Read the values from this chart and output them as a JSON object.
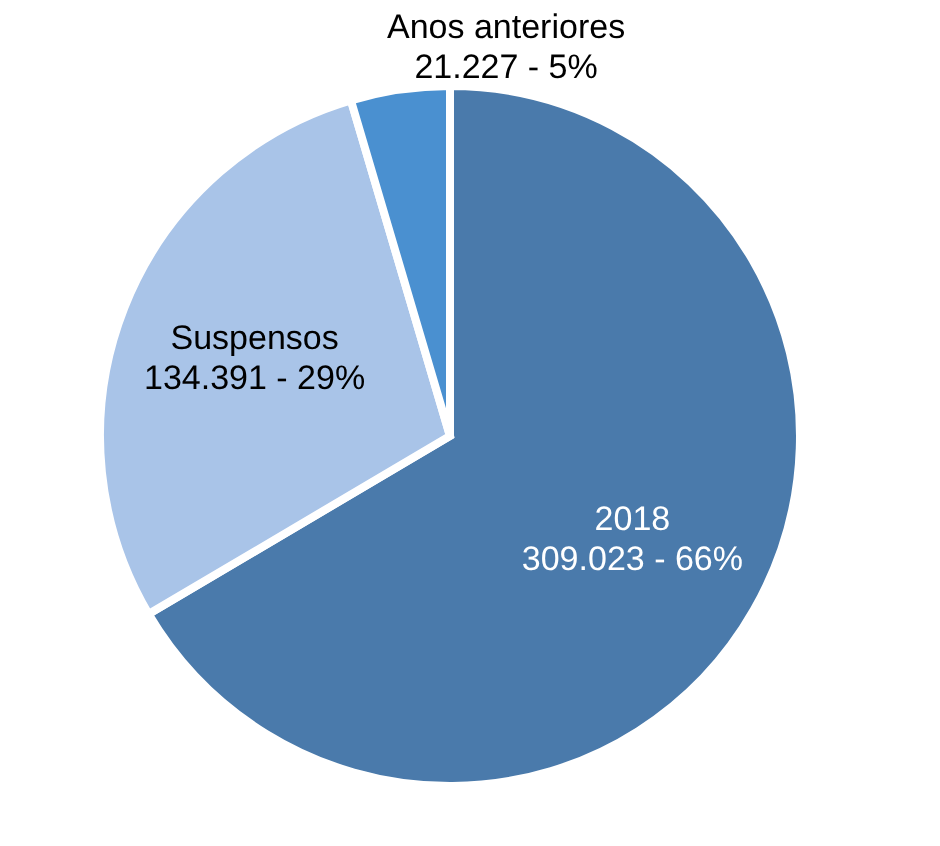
{
  "chart_data": {
    "type": "pie",
    "categories": [
      "2018",
      "Suspensos",
      "Anos anteriores"
    ],
    "values": [
      309023,
      134391,
      21227
    ],
    "value_labels": [
      "309.023 - 66%",
      "134.391 - 29%",
      "21.227 - 5%"
    ],
    "colors": [
      "#4a7aab",
      "#a9c4e8",
      "#4a90d0"
    ]
  }
}
